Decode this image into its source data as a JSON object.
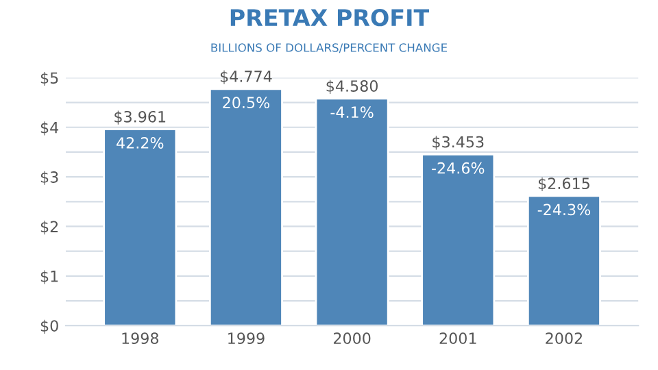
{
  "chart_data": {
    "type": "bar",
    "title": "PRETAX PROFIT",
    "subtitle": "BILLIONS OF DOLLARS/PERCENT CHANGE",
    "categories": [
      "1998",
      "1999",
      "2000",
      "2001",
      "2002"
    ],
    "values": [
      3.961,
      4.774,
      4.58,
      3.453,
      2.615
    ],
    "value_labels": [
      "$3.961",
      "$4.774",
      "$4.580",
      "$3.453",
      "$2.615"
    ],
    "annotations": [
      {
        "text": "42.2%",
        "x": "1998",
        "y": 3.961
      },
      {
        "text": "20.5%",
        "x": "1999",
        "y": 4.774
      },
      {
        "text": "-4.1%",
        "x": "2000",
        "y": 4.58
      },
      {
        "text": "-24.6%",
        "x": "2001",
        "y": 3.453
      },
      {
        "text": "-24.3%",
        "x": "2002",
        "y": 2.615
      }
    ],
    "color": "#4f86b8",
    "ylim": [
      0,
      5
    ],
    "yticks": [
      {
        "value": 0,
        "label": "$0"
      },
      {
        "value": 0.5,
        "label": null
      },
      {
        "value": 1,
        "label": "$1"
      },
      {
        "value": 1.5,
        "label": null
      },
      {
        "value": 2,
        "label": "$2"
      },
      {
        "value": 2.5,
        "label": null
      },
      {
        "value": 3,
        "label": "$3"
      },
      {
        "value": 3.5,
        "label": null
      },
      {
        "value": 4,
        "label": "$4"
      },
      {
        "value": 4.5,
        "label": null
      },
      {
        "value": 5,
        "label": "$5"
      }
    ],
    "grid": "y"
  }
}
